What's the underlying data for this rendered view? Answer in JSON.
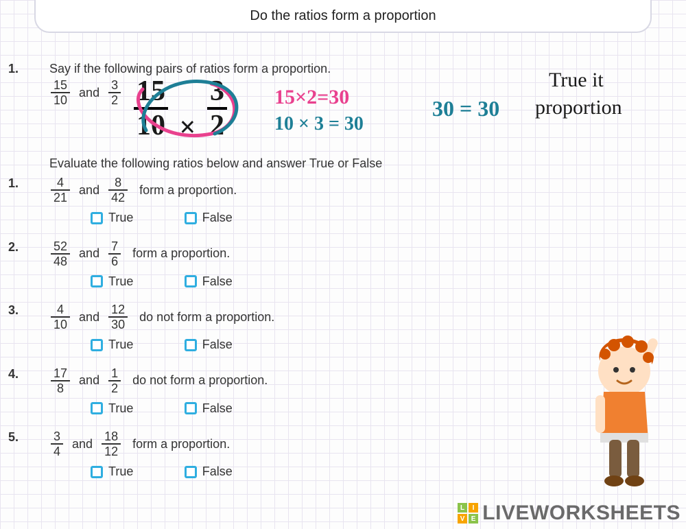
{
  "title": "Do the ratios form a proportion",
  "example": {
    "num": "1.",
    "instruction": "Say if the following pairs of ratios form a proportion.",
    "frac1": {
      "n": "15",
      "d": "10"
    },
    "and": "and",
    "frac2": {
      "n": "3",
      "d": "2"
    }
  },
  "handwriting": {
    "big_frac": {
      "n": "15",
      "d": "10"
    },
    "times": "×",
    "big_frac2": {
      "n": "3",
      "d": "2"
    },
    "calc1": "15×2=30",
    "calc2": "10 × 3 = 30",
    "eq": "30 = 30",
    "note1": "True it",
    "note2": "proportion",
    "colors": {
      "black": "#1a1a1a",
      "pink": "#e9418e",
      "teal": "#1e7f96"
    }
  },
  "section_instr": "Evaluate the following ratios below and answer True or False",
  "questions": [
    {
      "num": "1.",
      "f1": {
        "n": "4",
        "d": "21"
      },
      "f2": {
        "n": "8",
        "d": "42"
      },
      "tail": "form a proportion."
    },
    {
      "num": "2.",
      "f1": {
        "n": "52",
        "d": "48"
      },
      "f2": {
        "n": "7",
        "d": "6"
      },
      "tail": "form a proportion."
    },
    {
      "num": "3.",
      "f1": {
        "n": "4",
        "d": "10"
      },
      "f2": {
        "n": "12",
        "d": "30"
      },
      "tail": "do not form a proportion."
    },
    {
      "num": "4.",
      "f1": {
        "n": "17",
        "d": "8"
      },
      "f2": {
        "n": "1",
        "d": "2"
      },
      "tail": "do not form a proportion."
    },
    {
      "num": "5.",
      "f1": {
        "n": "3",
        "d": "4"
      },
      "f2": {
        "n": "18",
        "d": "12"
      },
      "tail": "form a proportion."
    }
  ],
  "options": {
    "true": "True",
    "false": "False"
  },
  "watermark": {
    "text": "LIVEWORKSHEETS",
    "badge": [
      "L",
      "I",
      "V",
      "E"
    ]
  }
}
